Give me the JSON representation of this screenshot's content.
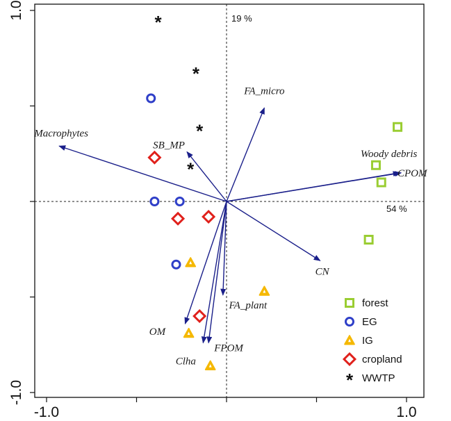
{
  "chart_data": {
    "type": "scatter",
    "subtype": "pca-biplot",
    "xlim": [
      -1.05,
      1.0
    ],
    "ylim": [
      -1.0,
      1.0
    ],
    "x_ticks": [
      {
        "value": -1.0,
        "label": "-1.0"
      },
      {
        "value": 1.0,
        "label": "1.0"
      }
    ],
    "y_ticks": [
      {
        "value": 1.0,
        "label": "1.0"
      },
      {
        "value": -1.0,
        "label": "-1.0"
      }
    ],
    "x_minor_ticks": [
      -0.5,
      0.0,
      0.5
    ],
    "y_minor_ticks": [
      0.5,
      0.0,
      -0.5
    ],
    "axis_annotations": {
      "vertical": "19 %",
      "horizontal": "54 %"
    },
    "arrow_color": "#1a1f8a",
    "vectors": [
      {
        "name": "Macrophytes",
        "x": -0.93,
        "y": 0.29
      },
      {
        "name": "FA_micro",
        "x": 0.21,
        "y": 0.49
      },
      {
        "name": "SB_MP",
        "x": -0.22,
        "y": 0.26
      },
      {
        "name": "Woody debris",
        "x": 0.96,
        "y": 0.15
      },
      {
        "name": "CPOM",
        "x": 0.97,
        "y": 0.15
      },
      {
        "name": "CN",
        "x": 0.52,
        "y": -0.31
      },
      {
        "name": "FA_plant",
        "x": -0.02,
        "y": -0.49
      },
      {
        "name": "OM",
        "x": -0.23,
        "y": -0.64
      },
      {
        "name": "FPOM",
        "x": -0.1,
        "y": -0.74
      },
      {
        "name": "Clha",
        "x": -0.13,
        "y": -0.74
      }
    ],
    "series": [
      {
        "name": "forest",
        "marker": "square",
        "color": "#9acd32",
        "points": [
          [
            0.95,
            0.39
          ],
          [
            0.83,
            0.19
          ],
          [
            0.86,
            0.1
          ],
          [
            0.79,
            -0.2
          ]
        ]
      },
      {
        "name": "EG",
        "marker": "circle",
        "color": "#2f3fc8",
        "points": [
          [
            -0.42,
            0.54
          ],
          [
            -0.4,
            0.0
          ],
          [
            -0.26,
            0.0
          ],
          [
            -0.28,
            -0.33
          ]
        ]
      },
      {
        "name": "IG",
        "marker": "triangle",
        "color": "#f5b800",
        "points": [
          [
            -0.2,
            -0.32
          ],
          [
            0.21,
            -0.47
          ],
          [
            -0.21,
            -0.69
          ],
          [
            -0.09,
            -0.86
          ]
        ]
      },
      {
        "name": "cropland",
        "marker": "diamond",
        "color": "#e0201b",
        "points": [
          [
            -0.4,
            0.23
          ],
          [
            -0.27,
            -0.09
          ],
          [
            -0.1,
            -0.08
          ],
          [
            -0.15,
            -0.6
          ]
        ]
      },
      {
        "name": "WWTP",
        "marker": "star",
        "color": "#111111",
        "points": [
          [
            -0.38,
            0.95
          ],
          [
            -0.17,
            0.68
          ],
          [
            -0.15,
            0.38
          ],
          [
            -0.2,
            0.18
          ]
        ]
      }
    ],
    "legend_position": "bottom-right"
  }
}
